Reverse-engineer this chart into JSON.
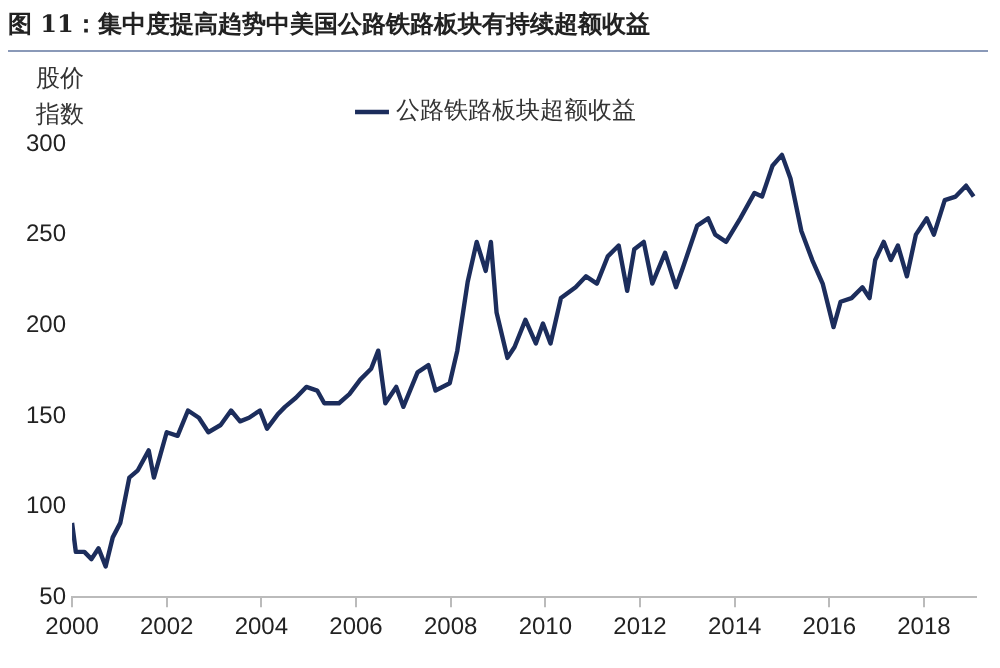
{
  "chart_data": {
    "type": "line",
    "title": "图 11：集中度提高趋势中美国公路铁路板块有持续超额收益",
    "ylabel": "股价指数",
    "x": [
      2000.0,
      2000.08,
      2000.26,
      2000.41,
      2000.56,
      2000.71,
      2000.86,
      2001.02,
      2001.21,
      2001.39,
      2001.62,
      2001.73,
      2002.0,
      2002.23,
      2002.45,
      2002.68,
      2002.88,
      2003.14,
      2003.36,
      2003.55,
      2003.74,
      2003.97,
      2004.12,
      2004.35,
      2004.5,
      2004.73,
      2004.95,
      2005.18,
      2005.33,
      2005.64,
      2005.86,
      2006.09,
      2006.32,
      2006.47,
      2006.62,
      2006.85,
      2007.0,
      2007.3,
      2007.53,
      2007.68,
      2007.98,
      2008.14,
      2008.36,
      2008.55,
      2008.74,
      2008.85,
      2008.97,
      2009.2,
      2009.35,
      2009.58,
      2009.8,
      2009.95,
      2010.11,
      2010.33,
      2010.64,
      2010.86,
      2011.09,
      2011.32,
      2011.55,
      2011.73,
      2011.88,
      2012.08,
      2012.26,
      2012.53,
      2012.76,
      2012.91,
      2013.21,
      2013.44,
      2013.59,
      2013.82,
      2014.12,
      2014.42,
      2014.58,
      2014.8,
      2015.0,
      2015.18,
      2015.41,
      2015.64,
      2015.86,
      2016.09,
      2016.24,
      2016.47,
      2016.7,
      2016.85,
      2016.97,
      2017.15,
      2017.3,
      2017.45,
      2017.64,
      2017.83,
      2018.06,
      2018.21,
      2018.44,
      2018.67,
      2018.89,
      2019.05
    ],
    "series": [
      {
        "name": "公路铁路板块超额收益",
        "color": "#1c2d5c",
        "values": [
          91,
          75,
          75,
          71,
          77,
          67,
          83,
          91,
          116,
          120,
          131,
          116,
          141,
          139,
          153,
          149,
          141,
          145,
          153,
          147,
          149,
          153,
          143,
          151,
          155,
          160,
          166,
          164,
          157,
          157,
          162,
          170,
          176,
          186,
          157,
          166,
          155,
          174,
          178,
          164,
          168,
          186,
          224,
          246,
          230,
          246,
          207,
          182,
          188,
          203,
          190,
          201,
          190,
          215,
          221,
          227,
          223,
          238,
          244,
          219,
          242,
          246,
          223,
          240,
          221,
          232,
          255,
          259,
          250,
          246,
          259,
          273,
          271,
          288,
          294,
          281,
          252,
          236,
          223,
          199,
          213,
          215,
          221,
          215,
          236,
          246,
          236,
          244,
          227,
          250,
          259,
          250,
          269,
          271,
          277,
          271
        ]
      }
    ],
    "xlim": [
      2000,
      2019.1
    ],
    "xticks": [
      2000,
      2002,
      2004,
      2006,
      2008,
      2010,
      2012,
      2014,
      2016,
      2018
    ],
    "ylim": [
      50,
      300
    ],
    "yticks": [
      50,
      100,
      150,
      200,
      250,
      300
    ],
    "grid": false,
    "legend": "top",
    "marker": "none",
    "line_style": "solid"
  }
}
